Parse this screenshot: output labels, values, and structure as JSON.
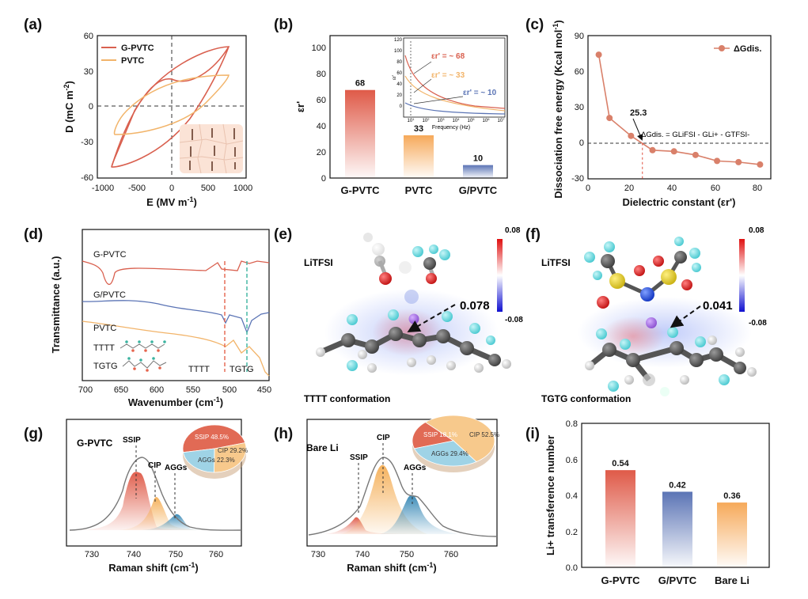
{
  "panels": {
    "a": {
      "label": "(a)",
      "xlabel": "E (MV m",
      "xlabel_sup": "-1",
      "xlabel_end": ")",
      "ylabel": "D (mC m",
      "ylabel_sup": "-2",
      "ylabel_end": ")",
      "xticks": [
        "-1000",
        "-500",
        "0",
        "500",
        "1000"
      ],
      "yticks": [
        "60",
        "30",
        "0",
        "-30",
        "-60"
      ],
      "legend": [
        "G-PVTC",
        "PVTC"
      ]
    },
    "b": {
      "label": "(b)",
      "ylabel": "εr'",
      "yticks": [
        "100",
        "80",
        "60",
        "40",
        "20",
        "0"
      ],
      "inset": {
        "yticks": [
          "120",
          "100",
          "80",
          "60",
          "40",
          "20",
          "0"
        ],
        "xlabel": "Frequency (Hz)",
        "ylabel": "εr'",
        "xticks": [
          "10",
          "10",
          "10",
          "10",
          "10",
          "10",
          "10"
        ],
        "xticks_exp": [
          "1",
          "2",
          "3",
          "4",
          "5",
          "6",
          "7"
        ],
        "notes": [
          "εr' = ~ 68",
          "εr' = ~ 33",
          "εr' = ~ 10"
        ]
      }
    },
    "c": {
      "label": "(c)",
      "xlabel": "Dielectric constant (εr')",
      "ylabel": "Dissociation free energy (Kcal mol",
      "ylabel_sup": "-1",
      "ylabel_end": ")",
      "xticks": [
        "0",
        "20",
        "40",
        "60",
        "80"
      ],
      "yticks": [
        "90",
        "60",
        "30",
        "0",
        "-30"
      ],
      "legend": "ΔGdis.",
      "marker_text": "25.3",
      "equation": "ΔGdis. = GLiFSI - GLi+ - GTFSI-"
    },
    "d": {
      "label": "(d)",
      "xlabel": "Wavenumber (cm",
      "xlabel_sup": "-1",
      "xlabel_end": ")",
      "ylabel": "Transmittance (a.u.)",
      "xticks": [
        "700",
        "650",
        "600",
        "550",
        "500",
        "450"
      ],
      "traces": [
        "G-PVTC",
        "G/PVTC",
        "PVTC",
        "TTTT",
        "TGTG"
      ],
      "markers": [
        "TTTT",
        "TGTG"
      ]
    },
    "e": {
      "label": "(e)",
      "molecule": "LiTFSI",
      "value": "0.078",
      "conformation": "TTTT conformation",
      "scale_max": "0.08",
      "scale_min": "-0.08"
    },
    "f": {
      "label": "(f)",
      "molecule": "LiTFSI",
      "value": "0.041",
      "conformation": "TGTG conformation",
      "scale_max": "0.08",
      "scale_min": "-0.08"
    },
    "g": {
      "label": "(g)",
      "sample": "G-PVTC",
      "xlabel": "Raman shift (cm",
      "xlabel_sup": "-1",
      "xlabel_end": ")",
      "xticks": [
        "730",
        "740",
        "750",
        "760"
      ],
      "peaks": [
        "SSIP",
        "CIP",
        "AGGs"
      ],
      "pie": [
        "SSIP 48.5%",
        "CIP 29.2%",
        "AGGs 22.3%"
      ]
    },
    "h": {
      "label": "(h)",
      "sample": "Bare Li",
      "xlabel": "Raman shift (cm",
      "xlabel_sup": "-1",
      "xlabel_end": ")",
      "xticks": [
        "730",
        "740",
        "750",
        "760"
      ],
      "peaks": [
        "SSIP",
        "CIP",
        "AGGs"
      ],
      "pie": [
        "SSIP 18.1%",
        "CIP 52.5%",
        "AGGs 29.4%"
      ]
    },
    "i": {
      "label": "(i)",
      "ylabel": "Li+ transference number",
      "yticks": [
        "0.8",
        "0.6",
        "0.4",
        "0.2",
        "0.0"
      ]
    }
  },
  "colors": {
    "gpvtc": "#d9604f",
    "pvtc": "#f2b46a",
    "gslash": "#5b74b5",
    "teal": "#3bb3a0",
    "grey": "#777777"
  },
  "chart_data": [
    {
      "id": "b",
      "type": "bar",
      "categories": [
        "G-PVTC",
        "PVTC",
        "G/PVTC"
      ],
      "values": [
        68,
        33,
        10
      ],
      "ylabel": "εr'",
      "ylim": [
        0,
        110
      ]
    },
    {
      "id": "c",
      "type": "line",
      "title": "",
      "series": [
        {
          "name": "ΔGdis.",
          "x": [
            5,
            10,
            20,
            25.3,
            30,
            40,
            50,
            60,
            70,
            80
          ],
          "y": [
            74,
            21,
            6,
            0,
            -6,
            -7,
            -10,
            -15,
            -16,
            -18
          ]
        }
      ],
      "xlabel": "Dielectric constant (εr')",
      "ylabel": "Dissociation free energy (Kcal mol-1)",
      "xlim": [
        0,
        85
      ],
      "ylim": [
        -30,
        90
      ]
    },
    {
      "id": "i",
      "type": "bar",
      "categories": [
        "G-PVTC",
        "G/PVTC",
        "Bare Li"
      ],
      "values": [
        0.54,
        0.42,
        0.36
      ],
      "ylabel": "Li+ transference number",
      "ylim": [
        0,
        0.8
      ]
    },
    {
      "id": "g-pie",
      "type": "pie",
      "labels": [
        "SSIP",
        "CIP",
        "AGGs"
      ],
      "values": [
        48.5,
        29.2,
        22.3
      ]
    },
    {
      "id": "h-pie",
      "type": "pie",
      "labels": [
        "SSIP",
        "CIP",
        "AGGs"
      ],
      "values": [
        18.1,
        52.5,
        29.4
      ]
    }
  ]
}
